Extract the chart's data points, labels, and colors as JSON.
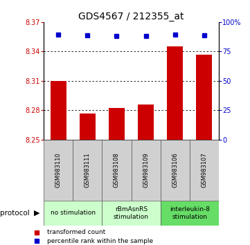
{
  "title": "GDS4567 / 212355_at",
  "samples": [
    "GSM983110",
    "GSM983111",
    "GSM983108",
    "GSM983109",
    "GSM983106",
    "GSM983107"
  ],
  "bar_values": [
    8.31,
    8.277,
    8.282,
    8.286,
    8.345,
    8.337
  ],
  "percentile_values": [
    89.5,
    88.5,
    88.0,
    88.2,
    89.5,
    89.0
  ],
  "bar_color": "#cc0000",
  "dot_color": "#0000cc",
  "ylim_left": [
    8.25,
    8.37
  ],
  "ylim_right": [
    0,
    100
  ],
  "yticks_left": [
    8.25,
    8.28,
    8.31,
    8.34,
    8.37
  ],
  "yticks_right": [
    0,
    25,
    50,
    75,
    100
  ],
  "grid_values": [
    8.28,
    8.31,
    8.34
  ],
  "protocols": [
    {
      "label": "no stimulation",
      "start": 0,
      "end": 2,
      "color": "#ccffcc"
    },
    {
      "label": "rBmAsnRS\nstimulation",
      "start": 2,
      "end": 4,
      "color": "#ccffcc"
    },
    {
      "label": "interleukin-8\nstimulation",
      "start": 4,
      "end": 6,
      "color": "#66dd66"
    }
  ],
  "legend_items": [
    {
      "label": "transformed count",
      "color": "#cc0000"
    },
    {
      "label": "percentile rank within the sample",
      "color": "#0000cc"
    }
  ],
  "title_fontsize": 10,
  "bar_width": 0.55,
  "base_value": 8.25
}
